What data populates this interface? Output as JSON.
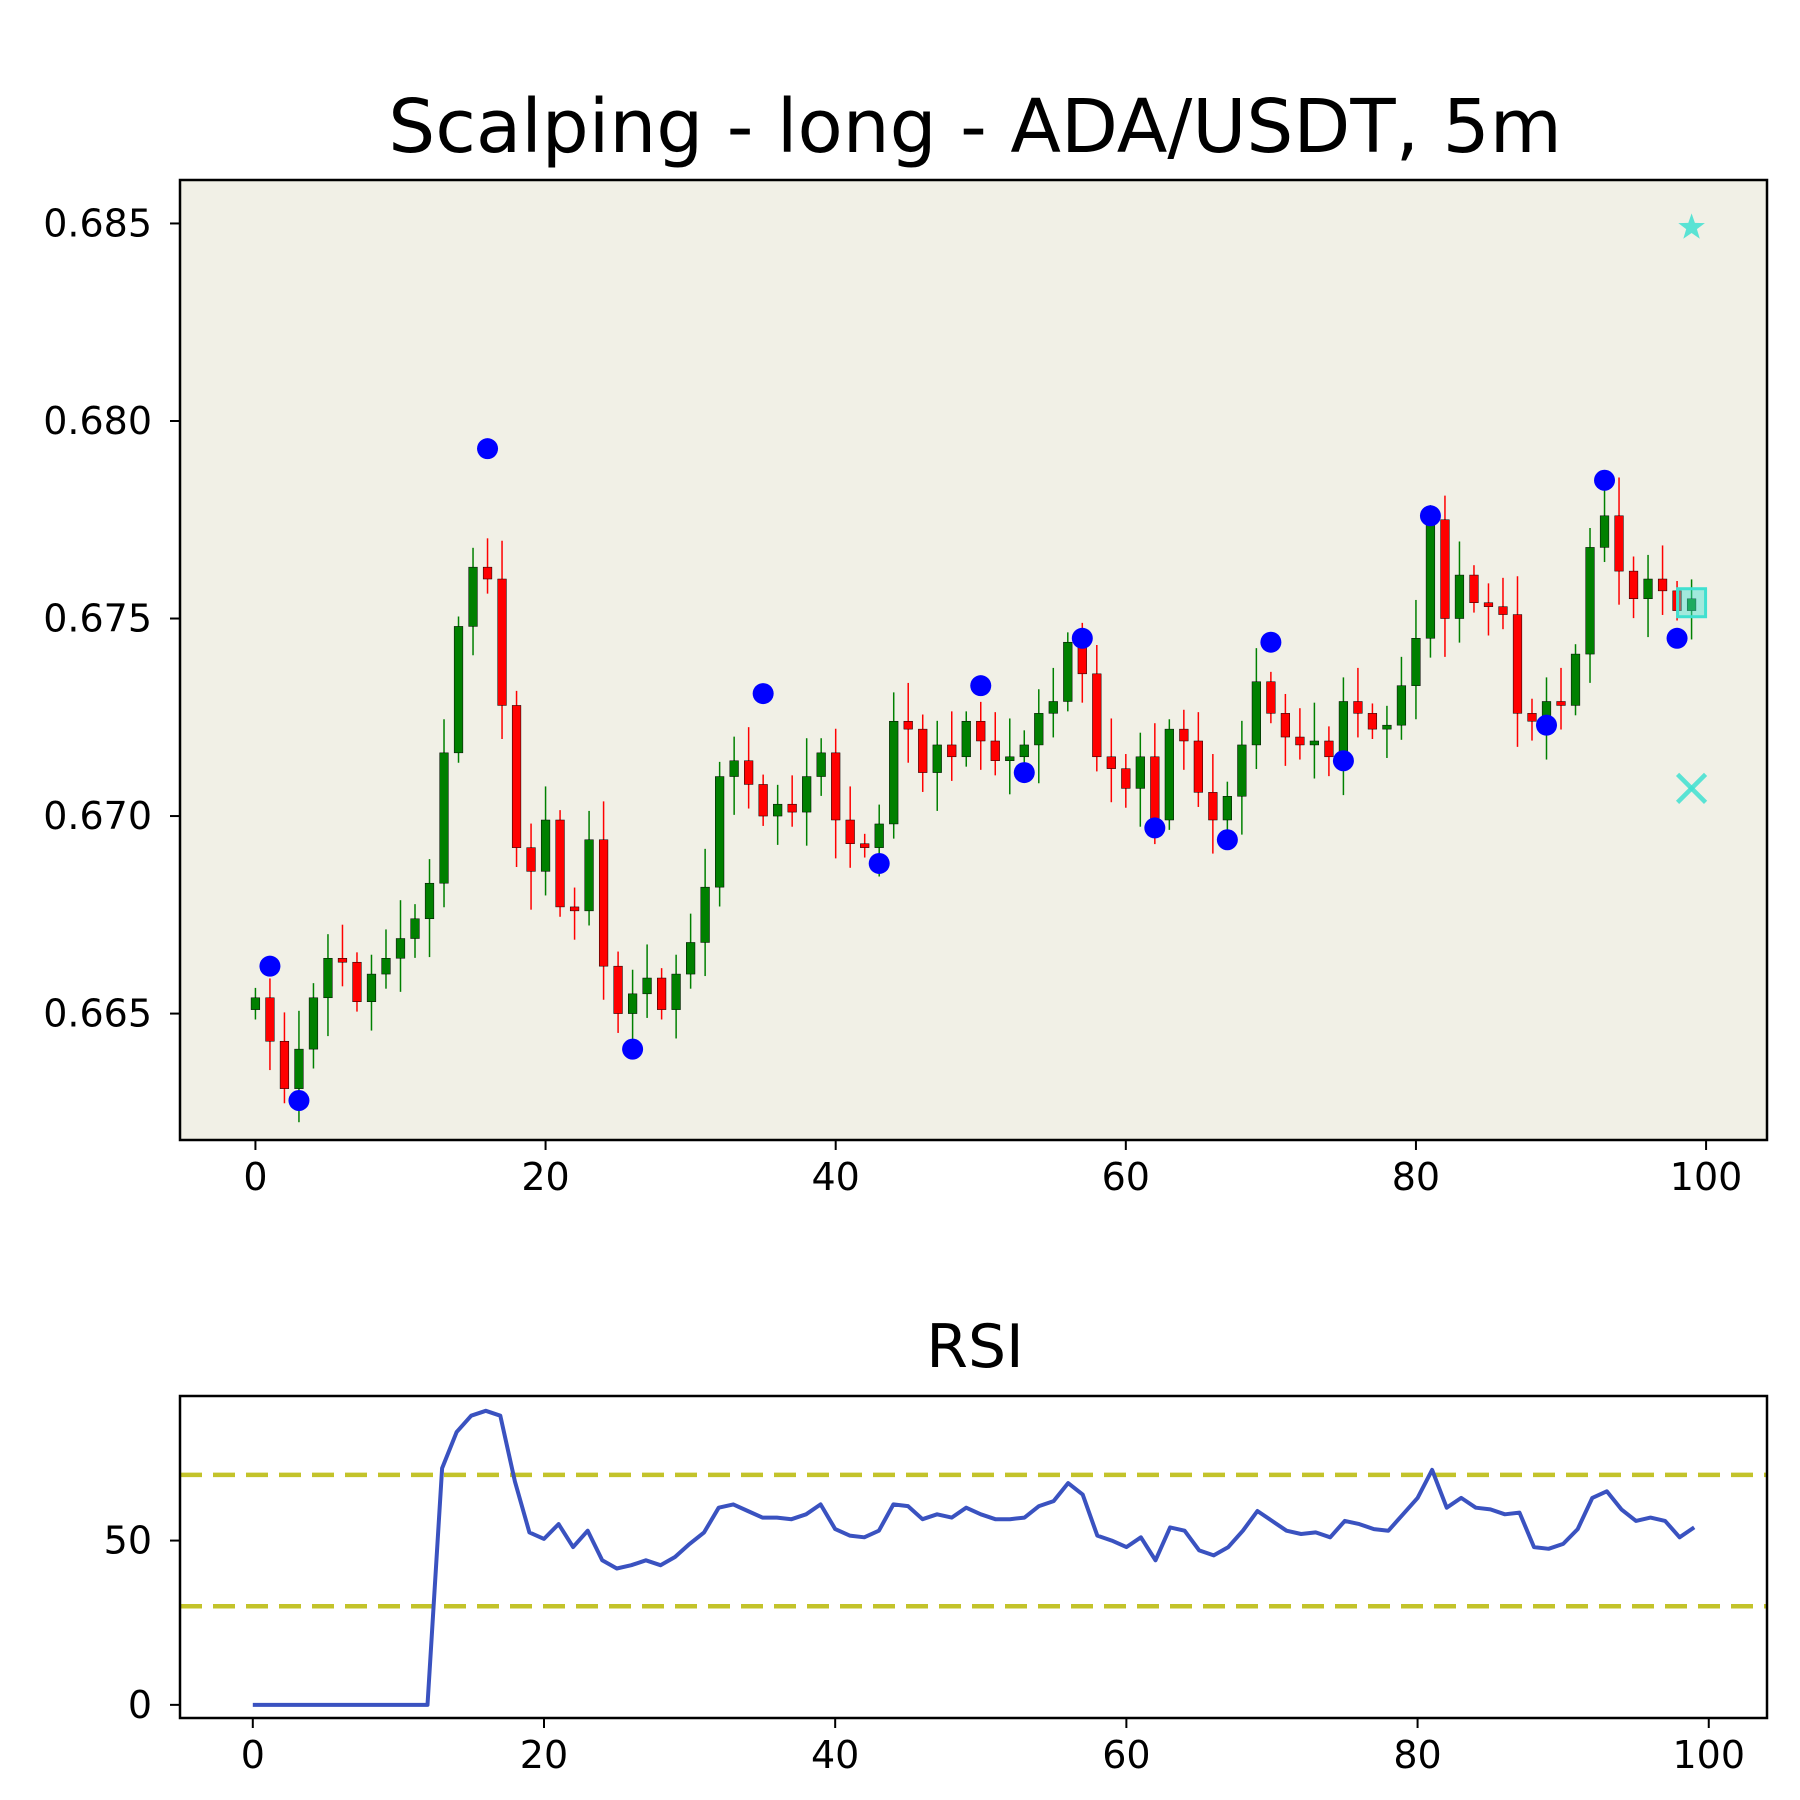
{
  "chart_data": [
    {
      "type": "candlestick",
      "title": "Scalping - long - ADA/USDT, 5m",
      "xlabel": "",
      "ylabel": "",
      "xlim": [
        -5.2,
        104.2
      ],
      "ylim": [
        0.6618,
        0.6861
      ],
      "xticks": [
        0,
        20,
        40,
        60,
        80,
        100
      ],
      "xtick_labels": [
        "0",
        "20",
        "40",
        "60",
        "80",
        "100"
      ],
      "yticks": [
        0.665,
        0.67,
        0.675,
        0.68,
        0.685
      ],
      "ytick_labels": [
        "0.665",
        "0.670",
        "0.675",
        "0.680",
        "0.685"
      ],
      "background": "#f1f0e6",
      "up_color": "#008000",
      "down_color": "#ff0000",
      "pivot_color": "#0000ff",
      "marker_color": "#40e0d0",
      "close": [
        0.6651,
        0.6654,
        0.6643,
        0.6631,
        0.6641,
        0.6654,
        0.6664,
        0.6663,
        0.6653,
        0.666,
        0.6664,
        0.6669,
        0.6674,
        0.6683,
        0.6716,
        0.6748,
        0.6763,
        0.676,
        0.6728,
        0.6692,
        0.6686,
        0.6699,
        0.6677,
        0.6676,
        0.6694,
        0.6662,
        0.665,
        0.6655,
        0.6659,
        0.6651,
        0.666,
        0.6668,
        0.6682,
        0.671,
        0.6714,
        0.6708,
        0.67,
        0.6703,
        0.6701,
        0.671,
        0.6716,
        0.6699,
        0.6693,
        0.6692,
        0.6698,
        0.6724,
        0.6722,
        0.6711,
        0.6718,
        0.6715,
        0.6724,
        0.6719,
        0.6714,
        0.6715,
        0.6718,
        0.6726,
        0.6729,
        0.6744,
        0.6736,
        0.6715,
        0.6712,
        0.6707,
        0.6715,
        0.6699,
        0.6722,
        0.6719,
        0.6706,
        0.6699,
        0.6705,
        0.6718,
        0.6734,
        0.6726,
        0.672,
        0.6718,
        0.6719,
        0.6715,
        0.6729,
        0.6726,
        0.6722,
        0.6723,
        0.6733,
        0.6745,
        0.6775,
        0.675,
        0.6761,
        0.6754,
        0.6753,
        0.6751,
        0.6726,
        0.6724,
        0.6729,
        0.6728,
        0.6741,
        0.6768,
        0.6776,
        0.6762,
        0.6755,
        0.676,
        0.6757,
        0.6752,
        0.6755
      ],
      "pivot_points": [
        {
          "x": 1,
          "y": 0.6662
        },
        {
          "x": 3,
          "y": 0.6628
        },
        {
          "x": 16,
          "y": 0.6793
        },
        {
          "x": 26,
          "y": 0.6641
        },
        {
          "x": 35,
          "y": 0.6731
        },
        {
          "x": 43,
          "y": 0.6688
        },
        {
          "x": 50,
          "y": 0.6733
        },
        {
          "x": 53,
          "y": 0.6711
        },
        {
          "x": 57,
          "y": 0.6745
        },
        {
          "x": 62,
          "y": 0.6697
        },
        {
          "x": 67,
          "y": 0.6694
        },
        {
          "x": 70,
          "y": 0.6744
        },
        {
          "x": 75,
          "y": 0.6714
        },
        {
          "x": 81,
          "y": 0.6776
        },
        {
          "x": 89,
          "y": 0.6723
        },
        {
          "x": 93,
          "y": 0.6785
        },
        {
          "x": 98,
          "y": 0.6745
        }
      ],
      "trade_markers": [
        {
          "name": "take-profit",
          "shape": "star",
          "x": 99,
          "y": 0.6849
        },
        {
          "name": "entry",
          "shape": "square",
          "x": 99,
          "y": 0.6754
        },
        {
          "name": "stop-loss",
          "shape": "x",
          "x": 99,
          "y": 0.6707
        }
      ]
    },
    {
      "type": "line",
      "title": "RSI",
      "xlabel": "",
      "ylabel": "",
      "xlim": [
        -5,
        104
      ],
      "ylim": [
        -4,
        94
      ],
      "xticks": [
        0,
        20,
        40,
        60,
        80,
        100
      ],
      "xtick_labels": [
        "0",
        "20",
        "40",
        "60",
        "80",
        "100"
      ],
      "yticks": [
        0,
        50
      ],
      "ytick_labels": [
        "0",
        "50"
      ],
      "line_color": "#3a52c0",
      "threshold_color": "#c3c32a",
      "thresholds": [
        70,
        30
      ],
      "x": [
        0,
        12,
        13,
        14,
        15,
        16,
        17,
        18,
        19,
        20,
        21,
        22,
        23,
        24,
        25,
        26,
        27,
        28,
        29,
        30,
        31,
        32,
        33,
        34,
        35,
        36,
        37,
        38,
        39,
        40,
        41,
        42,
        43,
        44,
        45,
        46,
        47,
        48,
        49,
        50,
        51,
        52,
        53,
        54,
        55,
        56,
        57,
        58,
        59,
        60,
        61,
        62,
        63,
        64,
        65,
        66,
        67,
        68,
        69,
        70,
        71,
        72,
        73,
        74,
        75,
        76,
        77,
        78,
        79,
        80,
        81,
        82,
        83,
        84,
        85,
        86,
        87,
        88,
        89,
        90,
        91,
        92,
        93,
        94,
        95,
        96,
        97,
        98,
        99
      ],
      "values": [
        0,
        0,
        72,
        83,
        88,
        89.5,
        88,
        68,
        52.5,
        50.5,
        55,
        48,
        53,
        44,
        41.5,
        42.5,
        44,
        42.5,
        45,
        49,
        52.5,
        60,
        61,
        59,
        57,
        57,
        56.5,
        58,
        61,
        53.5,
        51.5,
        51,
        53,
        61,
        60.5,
        56.5,
        58,
        57,
        60,
        58,
        56.5,
        56.5,
        57,
        60.5,
        62,
        67.5,
        64,
        51.5,
        50,
        48,
        51,
        44,
        54,
        53,
        47,
        45.5,
        48,
        53,
        59,
        56,
        53,
        52,
        52.5,
        51,
        56,
        55,
        53.5,
        53,
        58,
        63,
        71.5,
        60,
        63,
        60,
        59.5,
        58,
        58.5,
        48,
        47.5,
        49,
        53.5,
        63,
        65,
        59.5,
        56,
        57,
        56,
        51,
        54
      ]
    }
  ]
}
